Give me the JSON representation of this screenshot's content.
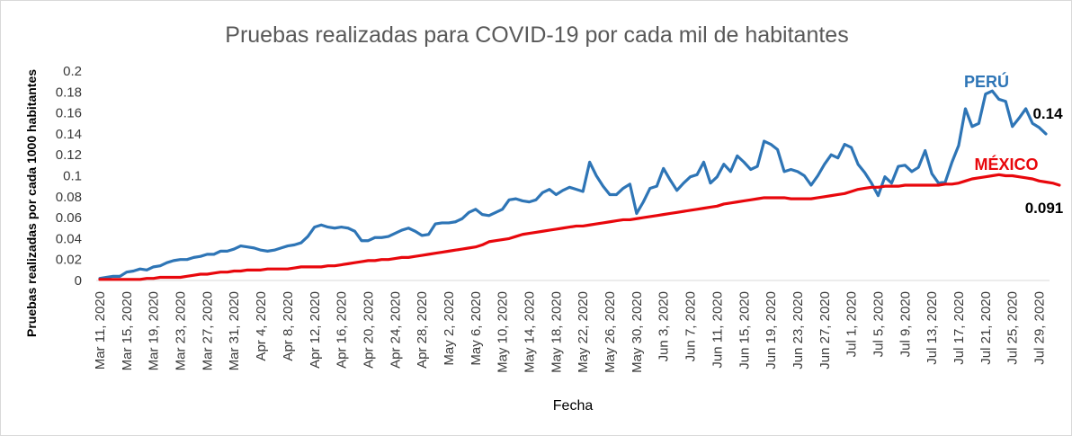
{
  "chart_data": {
    "type": "line",
    "title": "Pruebas realizadas para COVID-19 por cada mil de habitantes",
    "xlabel": "Fecha",
    "ylabel": "Pruebas realizadas por cada 1000 habitantes",
    "ylim": [
      0,
      0.2
    ],
    "yticks": [
      "0",
      "0.02",
      "0.04",
      "0.06",
      "0.08",
      "0.1",
      "0.12",
      "0.14",
      "0.16",
      "0.18",
      "0.2"
    ],
    "x_start": "Mar 11, 2020",
    "x_end": "Aug 1, 2020",
    "xtick_labels": [
      "Mar 11, 2020",
      "Mar 15, 2020",
      "Mar 19, 2020",
      "Mar 23, 2020",
      "Mar 27, 2020",
      "Mar 31, 2020",
      "Apr 4, 2020",
      "Apr 8, 2020",
      "Apr 12, 2020",
      "Apr 16, 2020",
      "Apr 20, 2020",
      "Apr 24, 2020",
      "Apr 28, 2020",
      "May 2, 2020",
      "May 6, 2020",
      "May 10, 2020",
      "May 14, 2020",
      "May 18, 2020",
      "May 22, 2020",
      "May 26, 2020",
      "May 30, 2020",
      "Jun 3, 2020",
      "Jun 7, 2020",
      "Jun 11, 2020",
      "Jun 15, 2020",
      "Jun 19, 2020",
      "Jun 23, 2020",
      "Jun 27, 2020",
      "Jul 1, 2020",
      "Jul 5, 2020",
      "Jul 9, 2020",
      "Jul 13, 2020",
      "Jul 17, 2020",
      "Jul 21, 2020",
      "Jul 25, 2020",
      "Jul 29, 2020"
    ],
    "grid": false,
    "legend": "none",
    "series": [
      {
        "name": "PERÚ",
        "color": "#2e75b6",
        "values": [
          0.002,
          0.003,
          0.004,
          0.004,
          0.008,
          0.009,
          0.011,
          0.01,
          0.013,
          0.014,
          0.017,
          0.019,
          0.02,
          0.02,
          0.022,
          0.023,
          0.025,
          0.025,
          0.028,
          0.028,
          0.03,
          0.033,
          0.032,
          0.031,
          0.029,
          0.028,
          0.029,
          0.031,
          0.033,
          0.034,
          0.036,
          0.042,
          0.051,
          0.053,
          0.051,
          0.05,
          0.051,
          0.05,
          0.047,
          0.038,
          0.038,
          0.041,
          0.041,
          0.042,
          0.045,
          0.048,
          0.05,
          0.047,
          0.043,
          0.044,
          0.054,
          0.055,
          0.055,
          0.056,
          0.059,
          0.065,
          0.068,
          0.063,
          0.062,
          0.065,
          0.068,
          0.077,
          0.078,
          0.076,
          0.075,
          0.077,
          0.084,
          0.087,
          0.082,
          0.086,
          0.089,
          0.087,
          0.085,
          0.113,
          0.1,
          0.09,
          0.082,
          0.082,
          0.088,
          0.092,
          0.064,
          0.075,
          0.088,
          0.09,
          0.107,
          0.096,
          0.086,
          0.093,
          0.099,
          0.101,
          0.113,
          0.093,
          0.099,
          0.111,
          0.104,
          0.119,
          0.113,
          0.106,
          0.109,
          0.133,
          0.13,
          0.125,
          0.104,
          0.106,
          0.104,
          0.1,
          0.091,
          0.1,
          0.111,
          0.12,
          0.117,
          0.13,
          0.127,
          0.111,
          0.103,
          0.093,
          0.081,
          0.099,
          0.093,
          0.109,
          0.11,
          0.104,
          0.108,
          0.124,
          0.102,
          0.093,
          0.094,
          0.113,
          0.129,
          0.164,
          0.147,
          0.15,
          0.178,
          0.181,
          0.173,
          0.171,
          0.147,
          0.155,
          0.164,
          0.15,
          0.146,
          0.14
        ]
      },
      {
        "name": "MÉXICO",
        "color": "#e8070c",
        "values": [
          0.001,
          0.001,
          0.001,
          0.001,
          0.001,
          0.001,
          0.001,
          0.002,
          0.002,
          0.003,
          0.003,
          0.003,
          0.003,
          0.004,
          0.005,
          0.006,
          0.006,
          0.007,
          0.008,
          0.008,
          0.009,
          0.009,
          0.01,
          0.01,
          0.01,
          0.011,
          0.011,
          0.011,
          0.011,
          0.012,
          0.013,
          0.013,
          0.013,
          0.013,
          0.014,
          0.014,
          0.015,
          0.016,
          0.017,
          0.018,
          0.019,
          0.019,
          0.02,
          0.02,
          0.021,
          0.022,
          0.022,
          0.023,
          0.024,
          0.025,
          0.026,
          0.027,
          0.028,
          0.029,
          0.03,
          0.031,
          0.032,
          0.034,
          0.037,
          0.038,
          0.039,
          0.04,
          0.042,
          0.044,
          0.045,
          0.046,
          0.047,
          0.048,
          0.049,
          0.05,
          0.051,
          0.052,
          0.052,
          0.053,
          0.054,
          0.055,
          0.056,
          0.057,
          0.058,
          0.058,
          0.059,
          0.06,
          0.061,
          0.062,
          0.063,
          0.064,
          0.065,
          0.066,
          0.067,
          0.068,
          0.069,
          0.07,
          0.071,
          0.073,
          0.074,
          0.075,
          0.076,
          0.077,
          0.078,
          0.079,
          0.079,
          0.079,
          0.079,
          0.078,
          0.078,
          0.078,
          0.078,
          0.079,
          0.08,
          0.081,
          0.082,
          0.083,
          0.085,
          0.087,
          0.088,
          0.089,
          0.089,
          0.09,
          0.09,
          0.09,
          0.091,
          0.091,
          0.091,
          0.091,
          0.091,
          0.091,
          0.092,
          0.092,
          0.093,
          0.095,
          0.097,
          0.098,
          0.099,
          0.1,
          0.101,
          0.1,
          0.1,
          0.099,
          0.098,
          0.097,
          0.095,
          0.094,
          0.093,
          0.091
        ]
      }
    ],
    "annotations": [
      {
        "series": "PERÚ",
        "text": "0.14"
      },
      {
        "series": "MÉXICO",
        "text": "0.091"
      }
    ]
  }
}
